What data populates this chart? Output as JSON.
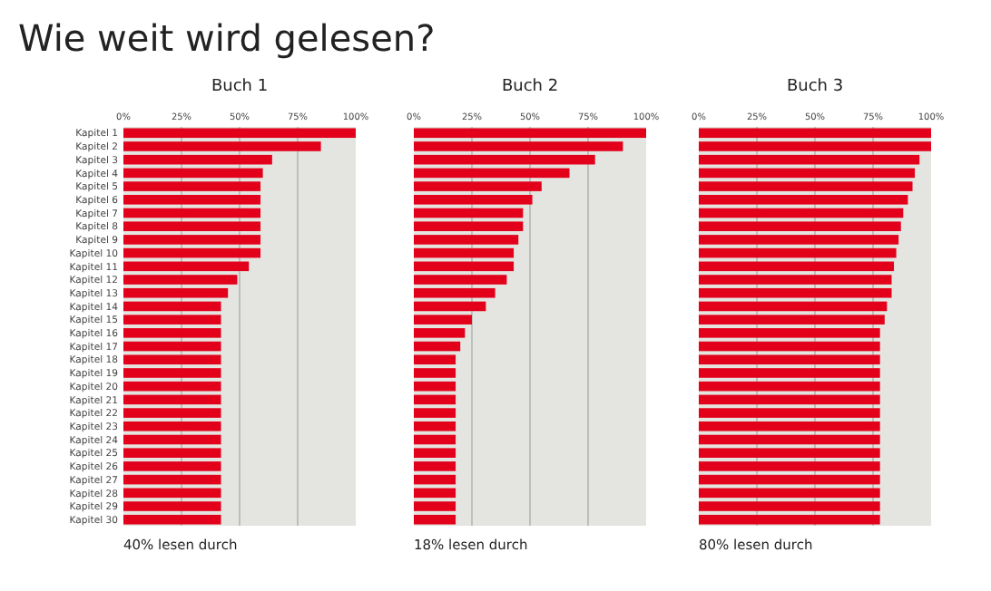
{
  "chart_data": [
    {
      "type": "bar",
      "orientation": "horizontal",
      "title": "Wie weit wird gelesen?",
      "subtitle": "Buch 1",
      "categories": [
        "Kapitel 1",
        "Kapitel 2",
        "Kapitel 3",
        "Kapitel 4",
        "Kapitel 5",
        "Kapitel 6",
        "Kapitel 7",
        "Kapitel 8",
        "Kapitel 9",
        "Kapitel 10",
        "Kapitel 11",
        "Kapitel 12",
        "Kapitel 13",
        "Kapitel 14",
        "Kapitel 15",
        "Kapitel 16",
        "Kapitel 17",
        "Kapitel 18",
        "Kapitel 19",
        "Kapitel 20",
        "Kapitel 21",
        "Kapitel 22",
        "Kapitel 23",
        "Kapitel 24",
        "Kapitel 25",
        "Kapitel 26",
        "Kapitel 27",
        "Kapitel 28",
        "Kapitel 29",
        "Kapitel 30"
      ],
      "values": [
        100,
        85,
        64,
        60,
        59,
        59,
        59,
        59,
        59,
        59,
        54,
        49,
        45,
        42,
        42,
        42,
        42,
        42,
        42,
        42,
        42,
        42,
        42,
        42,
        42,
        42,
        42,
        42,
        42,
        42
      ],
      "color": "#e2001a",
      "xlim": [
        0,
        100
      ],
      "xticks": [
        {
          "value": 0,
          "label": "0%"
        },
        {
          "value": 25,
          "label": "25%"
        },
        {
          "value": 50,
          "label": "50%"
        },
        {
          "value": 75,
          "label": "75%"
        },
        {
          "value": 100,
          "label": "100%"
        }
      ],
      "grid": "x",
      "annotations": [
        "40% lesen durch"
      ]
    },
    {
      "type": "bar",
      "orientation": "horizontal",
      "subtitle": "Buch 2",
      "categories": [
        null,
        null,
        null,
        null,
        null,
        null,
        null,
        null,
        null,
        null,
        null,
        null,
        null,
        null,
        null,
        null,
        null,
        null,
        null,
        null,
        null,
        null,
        null,
        null,
        null,
        null,
        null,
        null,
        null,
        null
      ],
      "values": [
        100,
        90,
        78,
        67,
        55,
        51,
        47,
        47,
        45,
        43,
        43,
        40,
        35,
        31,
        25,
        22,
        20,
        18,
        18,
        18,
        18,
        18,
        18,
        18,
        18,
        18,
        18,
        18,
        18,
        18
      ],
      "color": "#e2001a",
      "xlim": [
        0,
        100
      ],
      "xticks": [
        {
          "value": 0,
          "label": "0%"
        },
        {
          "value": 25,
          "label": "25%"
        },
        {
          "value": 50,
          "label": "50%"
        },
        {
          "value": 75,
          "label": "75%"
        },
        {
          "value": 100,
          "label": "100%"
        }
      ],
      "grid": "x",
      "tick_labels": "x",
      "annotations": [
        "18% lesen durch"
      ]
    },
    {
      "type": "bar",
      "orientation": "horizontal",
      "subtitle": "Buch 3",
      "categories": [
        null,
        null,
        null,
        null,
        null,
        null,
        null,
        null,
        null,
        null,
        null,
        null,
        null,
        null,
        null,
        null,
        null,
        null,
        null,
        null,
        null,
        null,
        null,
        null,
        null,
        null,
        null,
        null,
        null,
        null
      ],
      "values": [
        100,
        100,
        95,
        93,
        92,
        90,
        88,
        87,
        86,
        85,
        84,
        83,
        83,
        81,
        80,
        78,
        78,
        78,
        78,
        78,
        78,
        78,
        78,
        78,
        78,
        78,
        78,
        78,
        78,
        78
      ],
      "color": "#e2001a",
      "xlim": [
        0,
        100
      ],
      "xticks": [
        {
          "value": 0,
          "label": "0%"
        },
        {
          "value": 25,
          "label": "25%"
        },
        {
          "value": 50,
          "label": "50%"
        },
        {
          "value": 75,
          "label": "75%"
        },
        {
          "value": 100,
          "label": "100%"
        }
      ],
      "grid": "x",
      "tick_labels": "x",
      "annotations": [
        "80% lesen durch"
      ]
    }
  ]
}
